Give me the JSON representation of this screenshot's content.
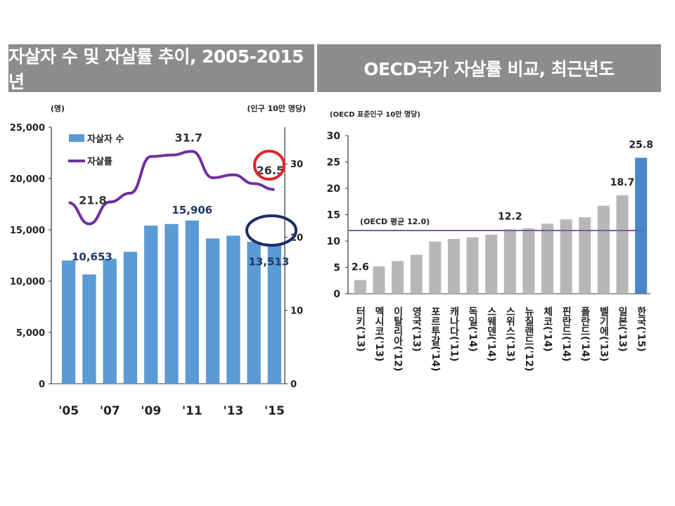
{
  "left_header": "자살자 수 및 자살률 추이, 2005-2015년",
  "right_header": "OECD국가 자살률 비교, 최근년도",
  "chart_data": [
    {
      "type": "bar",
      "title": "자살자 수 및 자살률 추이, 2005-2015년",
      "left_unit": "(명)",
      "right_unit": "(인구 10만 명당)",
      "x": [
        "2005",
        "2006",
        "2007",
        "2008",
        "2009",
        "2010",
        "2011",
        "2012",
        "2013",
        "2014",
        "2015"
      ],
      "x_tick_labels": [
        "'05",
        "'07",
        "'09",
        "'11",
        "'13",
        "'15"
      ],
      "left_ticks": [
        "25,000",
        "20,000",
        "15,000",
        "10,000",
        "5,000",
        "0"
      ],
      "right_ticks": [
        "30",
        "20",
        "10",
        "0"
      ],
      "ylim_left": [
        0,
        25000
      ],
      "ylim_right": [
        0,
        35
      ],
      "legend": [
        "자살자 수",
        "자살률"
      ],
      "legend_position": "top-left",
      "series": [
        {
          "name": "자살자 수",
          "type": "bar",
          "axis": "left",
          "values": [
            12011,
            10653,
            12174,
            12858,
            15413,
            15566,
            15906,
            14160,
            14427,
            13836,
            13513
          ]
        },
        {
          "name": "자살률",
          "type": "line",
          "axis": "right",
          "values": [
            24.7,
            21.8,
            24.8,
            26.0,
            31.0,
            31.2,
            31.7,
            28.1,
            28.5,
            27.3,
            26.5
          ]
        }
      ],
      "data_labels": [
        {
          "series": "자살자 수",
          "x": "2006",
          "text": "10,653"
        },
        {
          "series": "자살자 수",
          "x": "2011",
          "text": "15,906"
        },
        {
          "series": "자살자 수",
          "x": "2015",
          "text": "13,513"
        },
        {
          "series": "자살률",
          "x": "2006",
          "text": "21.8"
        },
        {
          "series": "자살률",
          "x": "2011",
          "text": "31.7"
        },
        {
          "series": "자살률",
          "x": "2015",
          "text": "26.5"
        }
      ],
      "highlight_colors": {
        "rate_circle": "#e3232b",
        "count_circle": "#1c2b6b"
      },
      "colors": {
        "bar": "#5b9bd5",
        "line": "#7030a0"
      }
    },
    {
      "type": "bar",
      "title": "OECD국가 자살률 비교, 최근년도",
      "unit": "(OECD 표준인구 10만 명당)",
      "categories": [
        "터키('13)",
        "멕시코('13)",
        "이탈리아('12)",
        "영국('13)",
        "포르투갈('14)",
        "캐나다('11)",
        "독일('14)",
        "스웨덴('14)",
        "스위스('13)",
        "뉴질랜드('12)",
        "체코('14)",
        "핀란드('14)",
        "폴란드('14)",
        "벨기에('13)",
        "일본('13)",
        "한국('15)"
      ],
      "values": [
        2.6,
        5.2,
        6.2,
        7.4,
        9.9,
        10.4,
        10.7,
        11.2,
        12.2,
        12.4,
        13.3,
        14.1,
        14.5,
        16.7,
        18.7,
        25.8
      ],
      "ylim": [
        0,
        30
      ],
      "y_ticks": [
        "30",
        "25",
        "20",
        "15",
        "10",
        "5",
        "0"
      ],
      "average_line": {
        "label": "(OECD 평균 12.0)",
        "value": 12.0
      },
      "data_labels": [
        {
          "category": "터키('13)",
          "text": "2.6"
        },
        {
          "category": "스위스('13)",
          "text": "12.2"
        },
        {
          "category": "일본('13)",
          "text": "18.7"
        },
        {
          "category": "한국('15)",
          "text": "25.8"
        }
      ],
      "colors": {
        "bar": "#b7b7b7",
        "highlight_bar": "#4a86c8",
        "average_line": "#7b5ea7"
      },
      "highlight_category": "한국('15)"
    }
  ]
}
